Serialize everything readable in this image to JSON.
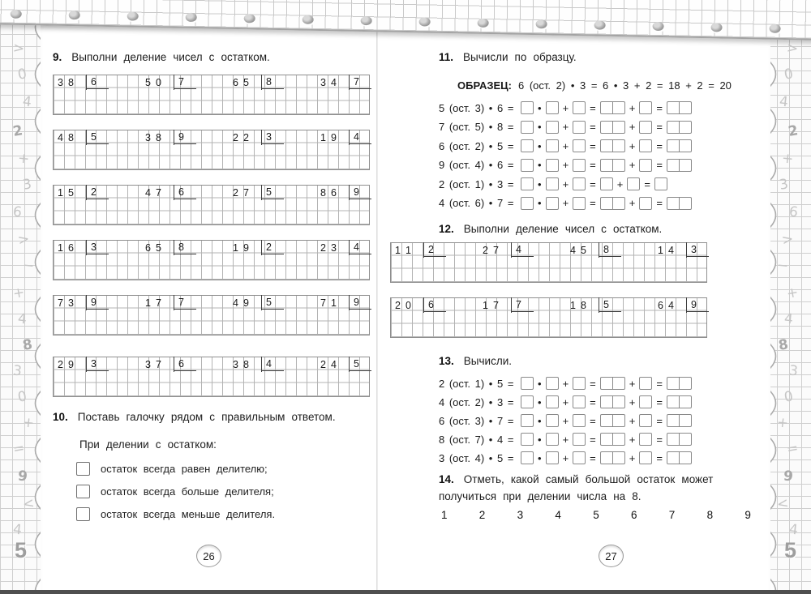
{
  "left": {
    "page_number": "26",
    "ex9": {
      "num": "9.",
      "title": "Выполни деление чисел с остатком.",
      "rows": [
        [
          [
            "38",
            "6"
          ],
          [
            "50",
            "7"
          ],
          [
            "65",
            "8"
          ],
          [
            "34",
            "7"
          ]
        ],
        [
          [
            "48",
            "5"
          ],
          [
            "38",
            "9"
          ],
          [
            "22",
            "3"
          ],
          [
            "19",
            "4"
          ]
        ],
        [
          [
            "15",
            "2"
          ],
          [
            "47",
            "6"
          ],
          [
            "27",
            "5"
          ],
          [
            "86",
            "9"
          ]
        ],
        [
          [
            "16",
            "3"
          ],
          [
            "65",
            "8"
          ],
          [
            "19",
            "2"
          ],
          [
            "23",
            "4"
          ]
        ],
        [
          [
            "73",
            "9"
          ],
          [
            "17",
            "7"
          ],
          [
            "49",
            "5"
          ],
          [
            "71",
            "9"
          ]
        ],
        [
          [
            "29",
            "3"
          ],
          [
            "37",
            "6"
          ],
          [
            "38",
            "4"
          ],
          [
            "24",
            "5"
          ]
        ]
      ]
    },
    "ex10": {
      "num": "10.",
      "title": "Поставь галочку рядом с правильным ответом.",
      "subtitle": "При делении с остатком:",
      "options": [
        "остаток всегда равен делителю;",
        "остаток всегда больше делителя;",
        "остаток всегда меньше делителя."
      ]
    }
  },
  "right": {
    "page_number": "27",
    "ex11": {
      "num": "11.",
      "title": "Вычисли по образцу.",
      "sample_label": "ОБРАЗЕЦ:",
      "sample_text": "6 (ост. 2) • 3 = 6 • 3 + 2 = 18 + 2 = 20",
      "equations": [
        {
          "a": "5",
          "rem": "3",
          "b": "6",
          "wide": true
        },
        {
          "a": "7",
          "rem": "5",
          "b": "8",
          "wide": true
        },
        {
          "a": "6",
          "rem": "2",
          "b": "5",
          "wide": true
        },
        {
          "a": "9",
          "rem": "4",
          "b": "6",
          "wide": true
        },
        {
          "a": "2",
          "rem": "1",
          "b": "3",
          "wide": false
        },
        {
          "a": "4",
          "rem": "6",
          "b": "7",
          "wide": true
        }
      ]
    },
    "ex12": {
      "num": "12.",
      "title": "Выполни деление чисел с остатком.",
      "rows": [
        [
          [
            "11",
            "2"
          ],
          [
            "27",
            "4"
          ],
          [
            "45",
            "8"
          ],
          [
            "14",
            "3"
          ]
        ],
        [
          [
            "20",
            "6"
          ],
          [
            "17",
            "7"
          ],
          [
            "18",
            "5"
          ],
          [
            "64",
            "9"
          ]
        ]
      ]
    },
    "ex13": {
      "num": "13.",
      "title": "Вычисли.",
      "equations": [
        {
          "a": "2",
          "rem": "1",
          "b": "5",
          "wide": true
        },
        {
          "a": "4",
          "rem": "2",
          "b": "3",
          "wide": true
        },
        {
          "a": "6",
          "rem": "3",
          "b": "7",
          "wide": true
        },
        {
          "a": "8",
          "rem": "7",
          "b": "4",
          "wide": true
        },
        {
          "a": "3",
          "rem": "4",
          "b": "5",
          "wide": true
        }
      ]
    },
    "ex14": {
      "num": "14.",
      "title": "Отметь, какой самый большой остаток может получиться при делении числа на 8.",
      "choices": [
        "1",
        "2",
        "3",
        "4",
        "5",
        "6",
        "7",
        "8",
        "9"
      ]
    }
  },
  "margins": {
    "symbols": [
      ">",
      "0",
      "4",
      "2",
      "+",
      "3",
      "6",
      ">",
      "−",
      "+",
      "4",
      "8",
      "3",
      "0",
      "+",
      "=",
      "9",
      "<",
      "4"
    ],
    "corner_number": "5"
  },
  "colors": {
    "grid_line": "#b3b3b3",
    "bracket": "#3d3d3d",
    "box_border": "#8a8a8a",
    "text": "#1a1a1a"
  },
  "rem_label": "(ост.",
  "ops": {
    "mul": "•",
    "plus": "+",
    "eq": "="
  }
}
